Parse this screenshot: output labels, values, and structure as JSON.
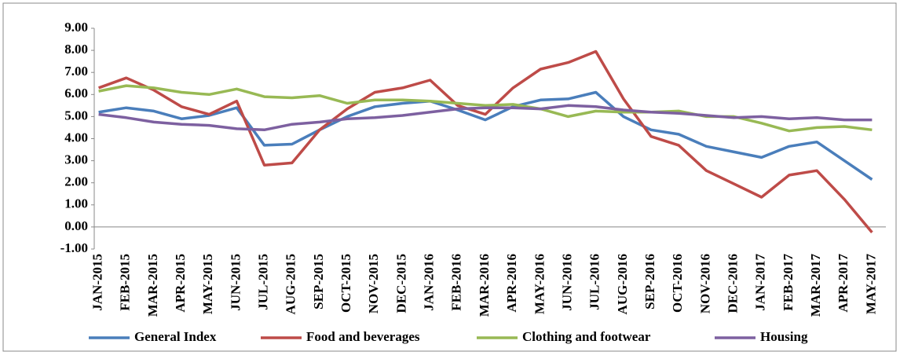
{
  "chart_data": {
    "type": "line",
    "categories": [
      "JAN-2015",
      "FEB-2015",
      "MAR-2015",
      "APR-2015",
      "MAY-2015",
      "JUN-2015",
      "JUL-2015",
      "AUG-2015",
      "SEP-2015",
      "OCT-2015",
      "NOV-2015",
      "DEC-2015",
      "JAN-2016",
      "FEB-2016",
      "MAR-2016",
      "APR-2016",
      "MAY-2016",
      "JUN-2016",
      "JUL-2016",
      "AUG-2016",
      "SEP-2016",
      "OCT-2016",
      "NOV-2016",
      "DEC-2016",
      "JAN-2017",
      "FEB-2017",
      "MAR-2017",
      "APR-2017",
      "MAY-2017"
    ],
    "series": [
      {
        "name": "General Index",
        "color": "#4a7ebb",
        "values": [
          5.2,
          5.4,
          5.25,
          4.9,
          5.05,
          5.4,
          3.7,
          3.75,
          4.4,
          5.0,
          5.45,
          5.6,
          5.7,
          5.3,
          4.85,
          5.45,
          5.75,
          5.8,
          6.1,
          5.0,
          4.4,
          4.2,
          3.65,
          3.4,
          3.15,
          3.65,
          3.85,
          3.0,
          2.15
        ]
      },
      {
        "name": "Food and beverages",
        "color": "#be4b48",
        "values": [
          6.3,
          6.75,
          6.2,
          5.45,
          5.1,
          5.7,
          2.8,
          2.9,
          4.4,
          5.35,
          6.1,
          6.3,
          6.65,
          5.5,
          5.1,
          6.3,
          7.15,
          7.45,
          7.95,
          5.8,
          4.1,
          3.7,
          2.55,
          1.95,
          1.35,
          2.35,
          2.55,
          1.25,
          -0.25
        ]
      },
      {
        "name": "Clothing and footwear",
        "color": "#98b954",
        "values": [
          6.15,
          6.4,
          6.3,
          6.1,
          6.0,
          6.25,
          5.9,
          5.85,
          5.95,
          5.6,
          5.75,
          5.75,
          5.7,
          5.6,
          5.5,
          5.55,
          5.35,
          5.0,
          5.25,
          5.2,
          5.2,
          5.25,
          5.0,
          5.0,
          4.7,
          4.35,
          4.5,
          4.55,
          4.4
        ]
      },
      {
        "name": "Housing",
        "color": "#7d60a0",
        "values": [
          5.1,
          4.95,
          4.75,
          4.65,
          4.6,
          4.45,
          4.4,
          4.65,
          4.75,
          4.9,
          4.95,
          5.05,
          5.2,
          5.35,
          5.4,
          5.4,
          5.35,
          5.5,
          5.45,
          5.3,
          5.2,
          5.15,
          5.05,
          4.95,
          5.0,
          4.9,
          4.95,
          4.85,
          4.85
        ]
      }
    ],
    "ylim": [
      -1,
      9
    ],
    "yticks": [
      {
        "value": -1,
        "label": "-1.00"
      },
      {
        "value": 0,
        "label": "0.00"
      },
      {
        "value": 1,
        "label": "1.00"
      },
      {
        "value": 2,
        "label": "2.00"
      },
      {
        "value": 3,
        "label": "3.00"
      },
      {
        "value": 4,
        "label": "4.00"
      },
      {
        "value": 5,
        "label": "5.00"
      },
      {
        "value": 6,
        "label": "6.00"
      },
      {
        "value": 7,
        "label": "7.00"
      },
      {
        "value": 8,
        "label": "8.00"
      },
      {
        "value": 9,
        "label": "9.00"
      }
    ],
    "legend": "bottom",
    "grid": false
  }
}
